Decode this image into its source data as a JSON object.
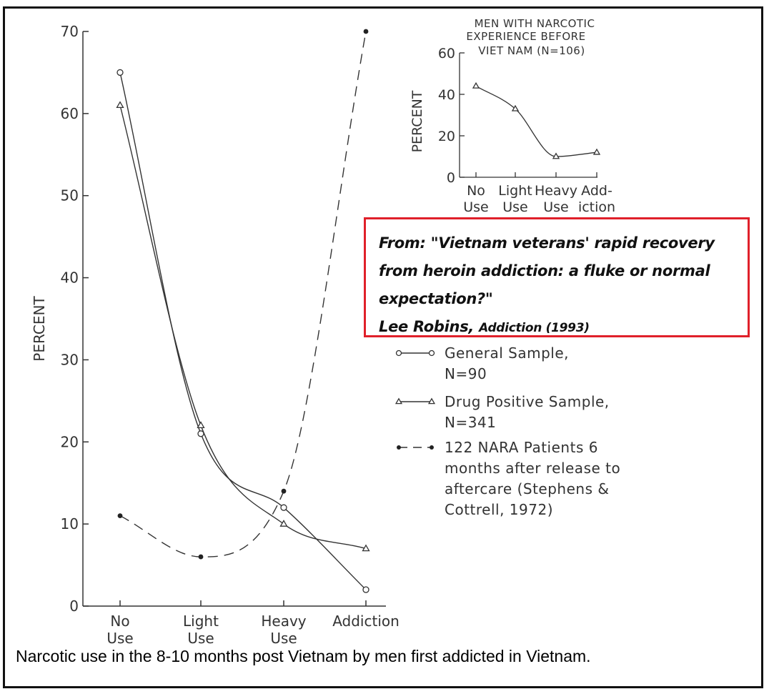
{
  "chart_data": [
    {
      "type": "line",
      "title": "",
      "xlabel": "",
      "ylabel": "PERCENT",
      "ylim": [
        0,
        70
      ],
      "yticks": [
        "0",
        "10",
        "20",
        "30",
        "40",
        "50",
        "60",
        "70"
      ],
      "categories": [
        {
          "line1": "No",
          "line2": "Use"
        },
        {
          "line1": "Light",
          "line2": "Use"
        },
        {
          "line1": "Heavy",
          "line2": "Use"
        },
        {
          "line1": "Addiction",
          "line2": ""
        }
      ],
      "series": [
        {
          "name": "General Sample, N=90",
          "marker": "open-circle",
          "style": "solid",
          "values": [
            65,
            21,
            12,
            2
          ]
        },
        {
          "name": "Drug Positive Sample, N=341",
          "marker": "open-triangle",
          "style": "solid",
          "values": [
            61,
            22,
            10,
            7
          ]
        },
        {
          "name": "122 NARA Patients 6 months after release to aftercare (Stephens & Cottrell, 1972)",
          "marker": "filled-dot",
          "style": "dashed",
          "values": [
            11,
            6,
            14,
            70
          ]
        }
      ],
      "legend": [
        {
          "lines": [
            "General Sample,",
            "N=90"
          ]
        },
        {
          "lines": [
            "Drug Positive Sample,",
            "N=341"
          ]
        },
        {
          "lines": [
            "122 NARA Patients 6",
            "months after release to",
            "aftercare (Stephens &",
            "Cottrell, 1972)"
          ]
        }
      ]
    },
    {
      "type": "line",
      "title_lines": [
        "MEN WITH NARCOTIC",
        "EXPERIENCE BEFORE",
        "VIET NAM (N=106)"
      ],
      "ylabel": "PERCENT",
      "ylim": [
        0,
        60
      ],
      "yticks": [
        "0",
        "20",
        "40",
        "60"
      ],
      "categories": [
        {
          "line1": "No",
          "line2": "Use"
        },
        {
          "line1": "Light",
          "line2": "Use"
        },
        {
          "line1": "Heavy",
          "line2": "Use"
        },
        {
          "line1": "Add-",
          "line2": "iction"
        }
      ],
      "series": [
        {
          "name": "Men with narcotic experience before Viet Nam",
          "marker": "open-triangle",
          "values": [
            44,
            33,
            10,
            12
          ]
        }
      ]
    }
  ],
  "citation": {
    "line1": "From: \"Vietnam veterans' rapid recovery",
    "line2": "from heroin addiction: a fluke or normal",
    "line3": "expectation?\"",
    "author": "Lee Robins,",
    "source": "Addiction (1993)"
  },
  "caption": "Narcotic use in the 8-10 months post Vietnam by men first addicted in Vietnam."
}
